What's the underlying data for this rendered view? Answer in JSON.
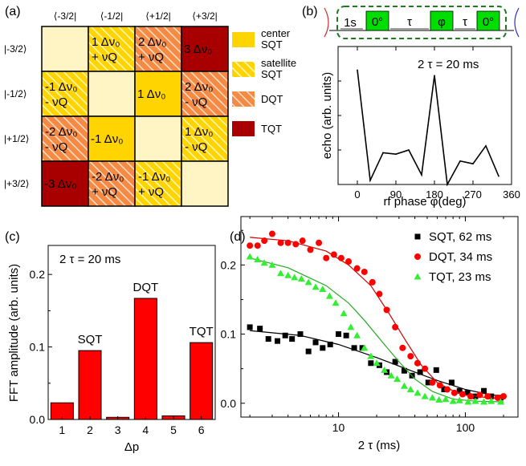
{
  "panels": {
    "a": "(a)",
    "b": "(b)",
    "c": "(c)",
    "d": "(d)"
  },
  "matrix": {
    "col_headers": [
      "⟨-3/2|",
      "⟨-1/2|",
      "⟨+1/2|",
      "⟨+3/2|"
    ],
    "row_headers": [
      "|-3/2⟩",
      "|-1/2⟩",
      "|+1/2⟩",
      "|+3/2⟩"
    ],
    "cells": [
      [
        {
          "t": "diag",
          "l1": "",
          "l2": ""
        },
        {
          "t": "sat",
          "l1": "1 Δν₀",
          "l2": "+ νQ"
        },
        {
          "t": "dqt",
          "l1": "2 Δν₀",
          "l2": "+ νQ"
        },
        {
          "t": "tqt",
          "l1": "3 Δν₀",
          "l2": ""
        }
      ],
      [
        {
          "t": "sat",
          "l1": "-1 Δν₀",
          "l2": "- νQ"
        },
        {
          "t": "diag",
          "l1": "",
          "l2": ""
        },
        {
          "t": "center",
          "l1": "1 Δν₀",
          "l2": ""
        },
        {
          "t": "dqt",
          "l1": "2 Δν₀",
          "l2": "- νQ"
        }
      ],
      [
        {
          "t": "dqt",
          "l1": "-2 Δν₀",
          "l2": "- νQ"
        },
        {
          "t": "center",
          "l1": "-1 Δν₀",
          "l2": ""
        },
        {
          "t": "diag",
          "l1": "",
          "l2": ""
        },
        {
          "t": "sat",
          "l1": "1 Δν₀",
          "l2": "- νQ"
        }
      ],
      [
        {
          "t": "tqt",
          "l1": "-3 Δν₀",
          "l2": ""
        },
        {
          "t": "dqt",
          "l1": "-2 Δν₀",
          "l2": "+ νQ"
        },
        {
          "t": "sat",
          "l1": "-1 Δν₀",
          "l2": "+ νQ"
        },
        {
          "t": "diag",
          "l1": "",
          "l2": ""
        }
      ]
    ],
    "legend": [
      {
        "t": "center",
        "l1": "center",
        "l2": "SQT"
      },
      {
        "t": "sat",
        "l1": "satellite",
        "l2": "SQT"
      },
      {
        "t": "dqt",
        "l1": "DQT",
        "l2": ""
      },
      {
        "t": "tqt",
        "l1": "TQT",
        "l2": ""
      }
    ],
    "colors": {
      "diag": "#fff5c4",
      "center": "#ffd400",
      "sat": "#ffd400",
      "dqt": "#f58a45",
      "tqt": "#a80000"
    }
  },
  "pulse": {
    "labels": [
      "1s",
      "0°",
      "τ",
      "φ",
      "τ",
      "0°"
    ],
    "box_color": "#00dd00",
    "outline_color": "#1f7a1f"
  },
  "chart_data": [
    {
      "type": "line",
      "annotation": "2 τ = 20 ms",
      "xlabel": "rf phase φ(deg)",
      "ylabel": "echo (arb. units)",
      "xlim": [
        -45,
        360
      ],
      "ylim": [
        0,
        1
      ],
      "xticks": [
        0,
        90,
        180,
        270,
        360
      ],
      "x": [
        0,
        30,
        60,
        90,
        120,
        150,
        180,
        210,
        240,
        270,
        300,
        330
      ],
      "y": [
        0.83,
        0.03,
        0.23,
        0.22,
        0.25,
        0.07,
        0.79,
        0.0,
        0.17,
        0.15,
        0.28,
        0.06
      ]
    },
    {
      "type": "bar",
      "annotation": "2 τ = 20 ms",
      "xlabel": "Δp",
      "ylabel": "FFT amplitude (arb. units)",
      "categories": [
        1,
        2,
        3,
        4,
        5,
        6
      ],
      "values": [
        0.023,
        0.095,
        0.003,
        0.167,
        0.005,
        0.106
      ],
      "bar_labels": [
        "",
        "SQT",
        "",
        "DQT",
        "",
        "TQT"
      ],
      "ylim": [
        0,
        0.24
      ],
      "yticks": [
        0.0,
        0.1,
        0.2
      ],
      "ytick_labels": [
        "0.0",
        "0.1",
        "0.2"
      ],
      "color": "#ff0000"
    },
    {
      "type": "scatter",
      "xscale": "log",
      "xlabel": "2 τ (ms)",
      "xlim": [
        1.7,
        260
      ],
      "ylim": [
        -0.02,
        0.27
      ],
      "xticks": [
        10,
        100
      ],
      "yticks": [
        0.0,
        0.1,
        0.2
      ],
      "ytick_labels": [
        "0.0",
        "0.1",
        "0.2"
      ],
      "legend_position": "top-right",
      "series": [
        {
          "name": "SQT, 62 ms",
          "marker": "square",
          "color": "#000000",
          "x": [
            2.0,
            2.4,
            2.8,
            3.3,
            3.8,
            4.3,
            5.0,
            5.8,
            6.6,
            7.5,
            8.6,
            10,
            11.5,
            13.3,
            15.4,
            18,
            21,
            24,
            28,
            33,
            38,
            44,
            51,
            59,
            68,
            78,
            90,
            104,
            120,
            140,
            160,
            190
          ],
          "y": [
            0.11,
            0.108,
            0.093,
            0.09,
            0.098,
            0.093,
            0.1,
            0.075,
            0.088,
            0.08,
            0.085,
            0.1,
            0.098,
            0.08,
            0.08,
            0.058,
            0.055,
            0.045,
            0.06,
            0.047,
            0.04,
            0.045,
            0.03,
            0.048,
            0.02,
            0.03,
            0.018,
            0.015,
            0.01,
            0.018,
            0.01,
            0.008
          ],
          "fit_x": [
            2,
            5,
            10,
            20,
            40,
            60,
            100,
            150,
            200
          ],
          "fit_y": [
            0.105,
            0.098,
            0.085,
            0.066,
            0.045,
            0.033,
            0.02,
            0.013,
            0.01
          ]
        },
        {
          "name": "DQT, 34 ms",
          "marker": "circle",
          "color": "#ff0000",
          "x": [
            2.0,
            2.3,
            2.6,
            3.0,
            3.5,
            4.0,
            4.6,
            5.2,
            6.0,
            7.0,
            8.0,
            9.2,
            10.5,
            12,
            14,
            16,
            18.5,
            21,
            24,
            28,
            32,
            37,
            42,
            48,
            55,
            63,
            72,
            82,
            95,
            110,
            130,
            150,
            180,
            200
          ],
          "y": [
            0.228,
            0.228,
            0.235,
            0.245,
            0.232,
            0.232,
            0.23,
            0.235,
            0.222,
            0.232,
            0.21,
            0.215,
            0.21,
            0.205,
            0.195,
            0.19,
            0.175,
            0.158,
            0.135,
            0.11,
            0.08,
            0.068,
            0.058,
            0.05,
            0.03,
            0.026,
            0.02,
            0.015,
            0.013,
            0.01,
            0.012,
            0.01,
            0.008,
            0.01
          ],
          "fit_x": [
            2,
            4,
            8,
            12,
            18,
            25,
            34,
            45,
            60,
            80,
            100,
            150,
            200
          ],
          "fit_y": [
            0.24,
            0.235,
            0.22,
            0.2,
            0.17,
            0.13,
            0.09,
            0.055,
            0.03,
            0.018,
            0.012,
            0.008,
            0.007
          ],
          "fit_color": "#cc0000"
        },
        {
          "name": "TQT, 23 ms",
          "marker": "triangle",
          "color": "#33ee33",
          "x": [
            2.0,
            2.3,
            2.6,
            3.0,
            3.5,
            4.0,
            4.5,
            5.1,
            5.8,
            6.6,
            7.5,
            8.5,
            9.5,
            11,
            12.5,
            14,
            16,
            18,
            20,
            23,
            26,
            29,
            33,
            37,
            42,
            48,
            55,
            62,
            70,
            80,
            90,
            105,
            120,
            140,
            160,
            190
          ],
          "y": [
            0.212,
            0.208,
            0.203,
            0.2,
            0.188,
            0.185,
            0.182,
            0.18,
            0.175,
            0.168,
            0.165,
            0.155,
            0.145,
            0.13,
            0.11,
            0.098,
            0.08,
            0.068,
            0.058,
            0.048,
            0.04,
            0.035,
            0.025,
            0.02,
            0.015,
            0.01,
            0.008,
            0.005,
            0.006,
            0.003,
            0.004,
            0.002,
            0.003,
            0.002,
            0.003,
            0.002
          ],
          "fit_x": [
            2,
            4,
            8,
            12,
            16,
            23,
            30,
            40,
            55,
            80,
            120,
            200
          ],
          "fit_y": [
            0.21,
            0.196,
            0.17,
            0.145,
            0.12,
            0.085,
            0.06,
            0.035,
            0.017,
            0.006,
            0.003,
            0.002
          ],
          "fit_color": "#22aa22"
        }
      ]
    }
  ]
}
